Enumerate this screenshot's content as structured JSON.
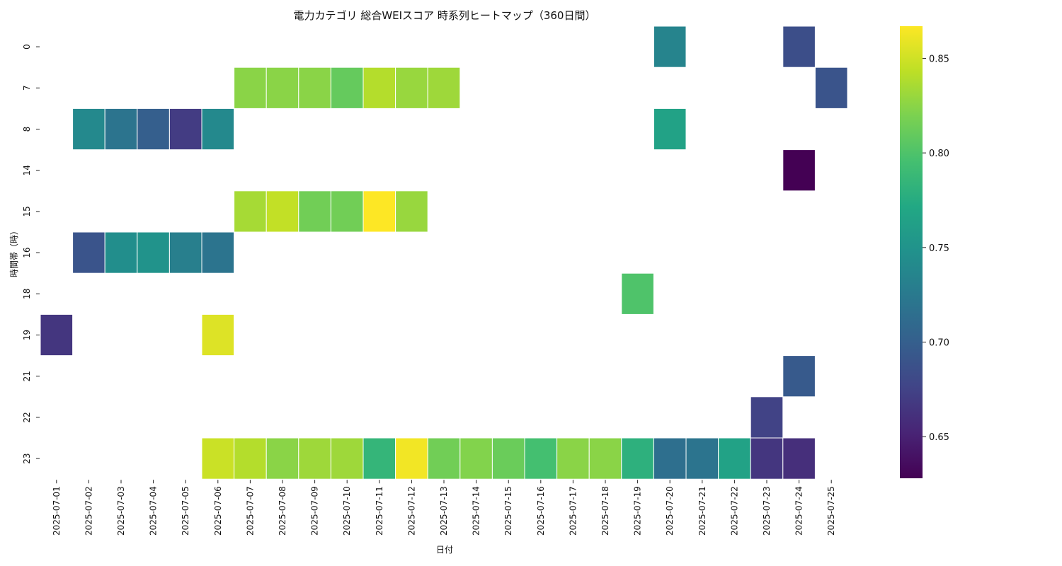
{
  "chart_data": {
    "type": "heatmap",
    "title": "電力カテゴリ 総合WEIスコア 時系列ヒートマップ（360日間）",
    "xlabel": "日付",
    "ylabel": "時間帯（時）",
    "colormap": "viridis",
    "x": [
      "2025-07-01",
      "2025-07-02",
      "2025-07-03",
      "2025-07-04",
      "2025-07-05",
      "2025-07-06",
      "2025-07-07",
      "2025-07-08",
      "2025-07-09",
      "2025-07-10",
      "2025-07-11",
      "2025-07-12",
      "2025-07-13",
      "2025-07-14",
      "2025-07-15",
      "2025-07-16",
      "2025-07-17",
      "2025-07-18",
      "2025-07-19",
      "2025-07-20",
      "2025-07-21",
      "2025-07-22",
      "2025-07-23",
      "2025-07-24",
      "2025-07-25"
    ],
    "y": [
      "0",
      "7",
      "8",
      "14",
      "15",
      "16",
      "18",
      "19",
      "21",
      "22",
      "23"
    ],
    "colorbar": {
      "min": 0.628,
      "max": 0.867,
      "ticks": [
        0.65,
        0.7,
        0.75,
        0.8,
        0.85
      ],
      "tick_labels": [
        "0.65",
        "0.70",
        "0.75",
        "0.80",
        "0.85"
      ]
    },
    "cells": [
      {
        "y": "0",
        "x": "2025-07-20",
        "value": 0.735
      },
      {
        "y": "0",
        "x": "2025-07-24",
        "value": 0.685
      },
      {
        "y": "7",
        "x": "2025-07-07",
        "value": 0.825
      },
      {
        "y": "7",
        "x": "2025-07-08",
        "value": 0.825
      },
      {
        "y": "7",
        "x": "2025-07-09",
        "value": 0.825
      },
      {
        "y": "7",
        "x": "2025-07-10",
        "value": 0.81
      },
      {
        "y": "7",
        "x": "2025-07-11",
        "value": 0.84
      },
      {
        "y": "7",
        "x": "2025-07-12",
        "value": 0.83
      },
      {
        "y": "7",
        "x": "2025-07-13",
        "value": 0.832
      },
      {
        "y": "7",
        "x": "2025-07-25",
        "value": 0.69
      },
      {
        "y": "8",
        "x": "2025-07-02",
        "value": 0.74
      },
      {
        "y": "8",
        "x": "2025-07-03",
        "value": 0.72
      },
      {
        "y": "8",
        "x": "2025-07-04",
        "value": 0.7
      },
      {
        "y": "8",
        "x": "2025-07-05",
        "value": 0.67
      },
      {
        "y": "8",
        "x": "2025-07-06",
        "value": 0.74
      },
      {
        "y": "8",
        "x": "2025-07-20",
        "value": 0.765
      },
      {
        "y": "14",
        "x": "2025-07-24",
        "value": 0.628
      },
      {
        "y": "15",
        "x": "2025-07-07",
        "value": 0.835
      },
      {
        "y": "15",
        "x": "2025-07-08",
        "value": 0.845
      },
      {
        "y": "15",
        "x": "2025-07-09",
        "value": 0.815
      },
      {
        "y": "15",
        "x": "2025-07-10",
        "value": 0.815
      },
      {
        "y": "15",
        "x": "2025-07-11",
        "value": 0.867
      },
      {
        "y": "15",
        "x": "2025-07-12",
        "value": 0.83
      },
      {
        "y": "16",
        "x": "2025-07-02",
        "value": 0.69
      },
      {
        "y": "16",
        "x": "2025-07-03",
        "value": 0.745
      },
      {
        "y": "16",
        "x": "2025-07-04",
        "value": 0.75
      },
      {
        "y": "16",
        "x": "2025-07-05",
        "value": 0.73
      },
      {
        "y": "16",
        "x": "2025-07-06",
        "value": 0.72
      },
      {
        "y": "18",
        "x": "2025-07-19",
        "value": 0.8
      },
      {
        "y": "19",
        "x": "2025-07-01",
        "value": 0.665
      },
      {
        "y": "19",
        "x": "2025-07-06",
        "value": 0.855
      },
      {
        "y": "21",
        "x": "2025-07-24",
        "value": 0.695
      },
      {
        "y": "22",
        "x": "2025-07-23",
        "value": 0.675
      },
      {
        "y": "23",
        "x": "2025-07-06",
        "value": 0.848
      },
      {
        "y": "23",
        "x": "2025-07-07",
        "value": 0.84
      },
      {
        "y": "23",
        "x": "2025-07-08",
        "value": 0.825
      },
      {
        "y": "23",
        "x": "2025-07-09",
        "value": 0.832
      },
      {
        "y": "23",
        "x": "2025-07-10",
        "value": 0.832
      },
      {
        "y": "23",
        "x": "2025-07-11",
        "value": 0.785
      },
      {
        "y": "23",
        "x": "2025-07-12",
        "value": 0.863
      },
      {
        "y": "23",
        "x": "2025-07-13",
        "value": 0.815
      },
      {
        "y": "23",
        "x": "2025-07-14",
        "value": 0.822
      },
      {
        "y": "23",
        "x": "2025-07-15",
        "value": 0.812
      },
      {
        "y": "23",
        "x": "2025-07-16",
        "value": 0.795
      },
      {
        "y": "23",
        "x": "2025-07-17",
        "value": 0.825
      },
      {
        "y": "23",
        "x": "2025-07-18",
        "value": 0.825
      },
      {
        "y": "23",
        "x": "2025-07-19",
        "value": 0.78
      },
      {
        "y": "23",
        "x": "2025-07-20",
        "value": 0.715
      },
      {
        "y": "23",
        "x": "2025-07-21",
        "value": 0.72
      },
      {
        "y": "23",
        "x": "2025-07-22",
        "value": 0.765
      },
      {
        "y": "23",
        "x": "2025-07-23",
        "value": 0.665
      },
      {
        "y": "23",
        "x": "2025-07-24",
        "value": 0.66
      }
    ]
  }
}
